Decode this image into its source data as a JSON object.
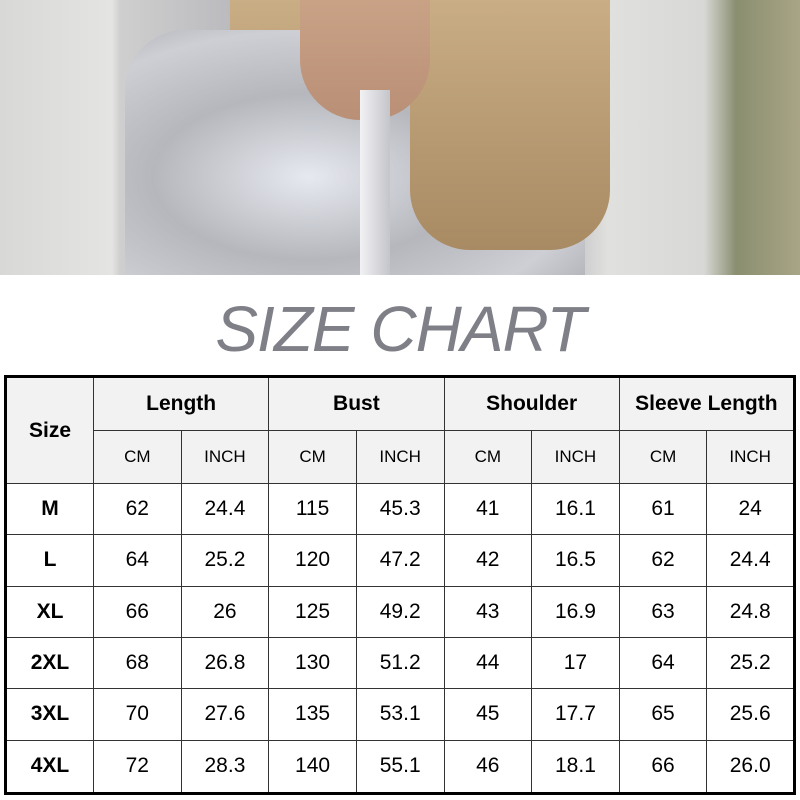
{
  "title": "SIZE CHART",
  "table": {
    "size_header": "Size",
    "groups": [
      "Length",
      "Bust",
      "Shoulder",
      "Sleeve Length"
    ],
    "units": [
      "CM",
      "INCH"
    ],
    "rows": [
      {
        "size": "M",
        "values": [
          "62",
          "24.4",
          "115",
          "45.3",
          "41",
          "16.1",
          "61",
          "24"
        ]
      },
      {
        "size": "L",
        "values": [
          "64",
          "25.2",
          "120",
          "47.2",
          "42",
          "16.5",
          "62",
          "24.4"
        ]
      },
      {
        "size": "XL",
        "values": [
          "66",
          "26",
          "125",
          "49.2",
          "43",
          "16.9",
          "63",
          "24.8"
        ]
      },
      {
        "size": "2XL",
        "values": [
          "68",
          "26.8",
          "130",
          "51.2",
          "44",
          "17",
          "64",
          "25.2"
        ]
      },
      {
        "size": "3XL",
        "values": [
          "70",
          "27.6",
          "135",
          "53.1",
          "45",
          "17.7",
          "65",
          "25.6"
        ]
      },
      {
        "size": "4XL",
        "values": [
          "72",
          "28.3",
          "140",
          "55.1",
          "46",
          "18.1",
          "66",
          "26.0"
        ]
      }
    ]
  }
}
